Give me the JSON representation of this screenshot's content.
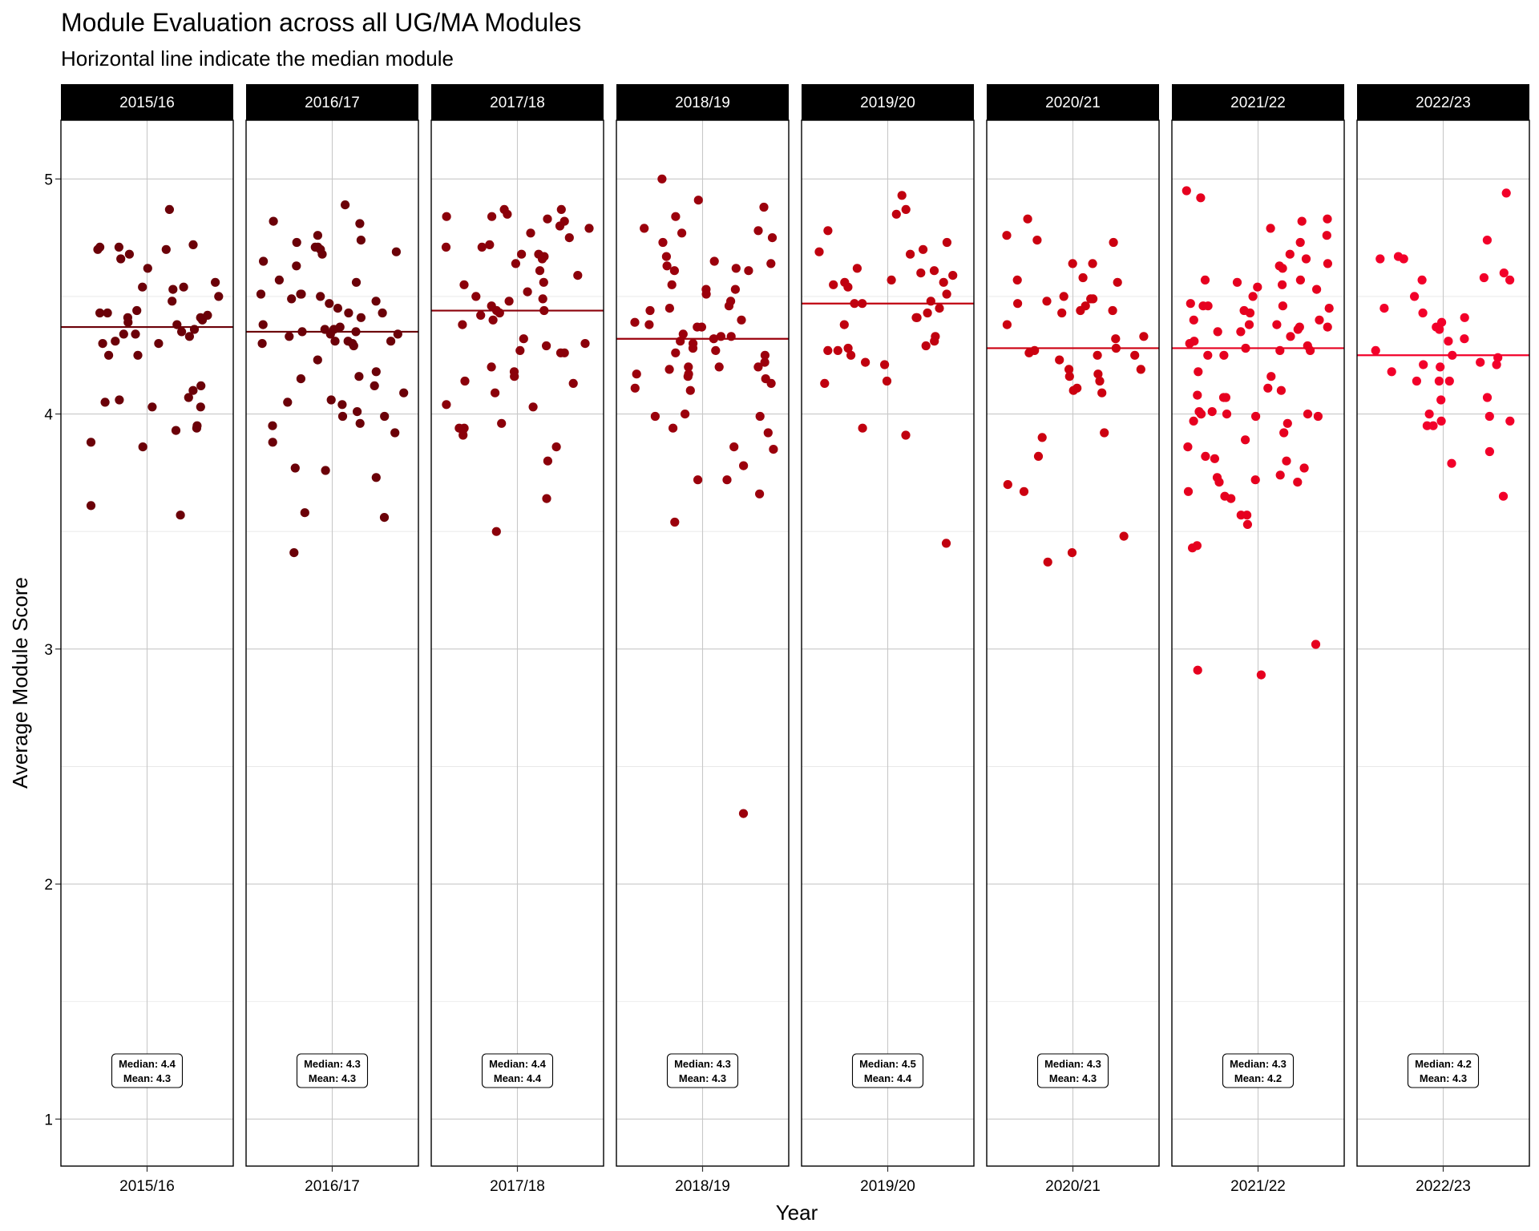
{
  "chart_data": {
    "type": "scatter",
    "title": "Module Evaluation across all UG/MA Modules",
    "subtitle": "Horizontal line indicate the median module",
    "xlabel": "Year",
    "ylabel": "Average Module Score",
    "ylim": [
      0.8,
      5.25
    ],
    "yticks": [
      "1",
      "2",
      "3",
      "4",
      "5"
    ],
    "grid": true,
    "panels": [
      {
        "year": "2015/16",
        "color": "#6b0008",
        "median": 4.37,
        "median_label": "Median: 4.4",
        "mean_label": "Mean: 4.3",
        "points": [
          4.87,
          4.71,
          4.7,
          4.5,
          4.53,
          4.48,
          4.43,
          4.4,
          4.38,
          4.36,
          4.35,
          4.34,
          4.33,
          4.3,
          4.3,
          4.25,
          4.05,
          4.07,
          4.03,
          3.94,
          3.88,
          3.86,
          3.57,
          4.41,
          4.31,
          4.39,
          4.42,
          4.41,
          4.34,
          4.44,
          4.72,
          4.71,
          4.7,
          4.66,
          4.68,
          4.62,
          4.56,
          4.54,
          4.54,
          4.43,
          4.25,
          4.12,
          4.1,
          4.06,
          4.03,
          3.95,
          3.93,
          3.61
        ]
      },
      {
        "year": "2016/17",
        "color": "#6b0008",
        "median": 4.35,
        "median_label": "Median: 4.3",
        "mean_label": "Mean: 4.3",
        "points": [
          4.89,
          4.82,
          4.81,
          4.76,
          4.74,
          4.73,
          4.71,
          4.71,
          4.7,
          4.69,
          4.68,
          4.65,
          4.63,
          4.57,
          4.56,
          4.51,
          4.51,
          4.51,
          4.5,
          4.49,
          4.48,
          4.47,
          4.45,
          4.43,
          4.43,
          4.41,
          4.38,
          4.37,
          4.36,
          4.36,
          4.35,
          4.35,
          4.34,
          4.34,
          4.33,
          4.31,
          4.31,
          4.31,
          4.3,
          4.3,
          4.29,
          4.23,
          4.18,
          4.16,
          4.15,
          4.12,
          4.09,
          4.06,
          4.05,
          4.04,
          4.01,
          3.99,
          3.99,
          3.96,
          3.95,
          3.92,
          3.88,
          3.77,
          3.76,
          3.73,
          3.58,
          3.56,
          3.41
        ]
      },
      {
        "year": "2017/18",
        "color": "#8b000a",
        "median": 4.44,
        "median_label": "Median: 4.4",
        "mean_label": "Mean: 4.4",
        "points": [
          4.87,
          4.87,
          4.85,
          4.84,
          4.84,
          4.83,
          4.82,
          4.8,
          4.79,
          4.77,
          4.75,
          4.72,
          4.71,
          4.71,
          4.68,
          4.68,
          4.67,
          4.66,
          4.64,
          4.61,
          4.59,
          4.56,
          4.55,
          4.52,
          4.5,
          4.49,
          4.48,
          4.46,
          4.44,
          4.44,
          4.43,
          4.42,
          4.4,
          4.38,
          4.32,
          4.3,
          4.29,
          4.27,
          4.26,
          4.26,
          4.2,
          4.18,
          4.16,
          4.14,
          4.13,
          4.09,
          4.04,
          4.03,
          3.96,
          3.94,
          3.94,
          3.93,
          3.91,
          3.86,
          3.8,
          3.64,
          3.5
        ]
      },
      {
        "year": "2018/19",
        "color": "#9b000c",
        "median": 4.32,
        "median_label": "Median: 4.3",
        "mean_label": "Mean: 4.3",
        "points": [
          5.0,
          4.91,
          4.88,
          4.84,
          4.79,
          4.78,
          4.77,
          4.75,
          4.73,
          4.67,
          4.65,
          4.64,
          4.63,
          4.62,
          4.61,
          4.61,
          4.55,
          4.53,
          4.53,
          4.51,
          4.48,
          4.46,
          4.45,
          4.44,
          4.4,
          4.39,
          4.38,
          4.37,
          4.37,
          4.34,
          4.33,
          4.33,
          4.32,
          4.31,
          4.3,
          4.28,
          4.27,
          4.26,
          4.25,
          4.22,
          4.2,
          4.2,
          4.2,
          4.19,
          4.17,
          4.17,
          4.16,
          4.15,
          4.13,
          4.11,
          4.1,
          4.0,
          3.99,
          3.99,
          3.94,
          3.92,
          3.86,
          3.85,
          3.78,
          3.72,
          3.72,
          3.66,
          3.54,
          2.3
        ]
      },
      {
        "year": "2019/20",
        "color": "#c0000f",
        "median": 4.47,
        "median_label": "Median: 4.5",
        "mean_label": "Mean: 4.4",
        "points": [
          4.93,
          4.87,
          4.85,
          4.78,
          4.73,
          4.7,
          4.69,
          4.68,
          4.62,
          4.61,
          4.6,
          4.59,
          4.57,
          4.56,
          4.56,
          4.55,
          4.54,
          4.51,
          4.48,
          4.47,
          4.47,
          4.45,
          4.43,
          4.41,
          4.41,
          4.38,
          4.33,
          4.31,
          4.29,
          4.28,
          4.27,
          4.27,
          4.25,
          4.22,
          4.21,
          4.14,
          4.13,
          3.94,
          3.91,
          3.45
        ]
      },
      {
        "year": "2020/21",
        "color": "#cc0010",
        "median": 4.28,
        "median_label": "Median: 4.3",
        "mean_label": "Mean: 4.3",
        "points": [
          4.83,
          4.76,
          4.74,
          4.73,
          4.64,
          4.64,
          4.58,
          4.57,
          4.56,
          4.5,
          4.49,
          4.49,
          4.48,
          4.47,
          4.46,
          4.44,
          4.44,
          4.43,
          4.38,
          4.33,
          4.32,
          4.28,
          4.27,
          4.26,
          4.25,
          4.25,
          4.23,
          4.19,
          4.19,
          4.17,
          4.16,
          4.14,
          4.11,
          4.1,
          4.09,
          3.92,
          3.9,
          3.82,
          3.7,
          3.67,
          3.48,
          3.41,
          3.37
        ]
      },
      {
        "year": "2021/22",
        "color": "#e6001f",
        "median": 4.28,
        "median_label": "Median: 4.3",
        "mean_label": "Mean: 4.2",
        "points": [
          4.95,
          4.92,
          4.83,
          4.82,
          4.79,
          4.76,
          4.73,
          4.68,
          4.66,
          4.64,
          4.63,
          4.62,
          4.57,
          4.57,
          4.56,
          4.55,
          4.54,
          4.53,
          4.5,
          4.47,
          4.46,
          4.46,
          4.46,
          4.45,
          4.44,
          4.43,
          4.4,
          4.4,
          4.38,
          4.38,
          4.37,
          4.37,
          4.36,
          4.35,
          4.35,
          4.33,
          4.31,
          4.3,
          4.29,
          4.28,
          4.27,
          4.27,
          4.25,
          4.25,
          4.18,
          4.16,
          4.11,
          4.1,
          4.08,
          4.07,
          4.07,
          4.01,
          4.01,
          4.0,
          4.0,
          4.0,
          4.0,
          3.99,
          3.99,
          3.97,
          3.96,
          3.92,
          3.89,
          3.86,
          3.82,
          3.81,
          3.8,
          3.77,
          3.74,
          3.73,
          3.72,
          3.71,
          3.71,
          3.67,
          3.65,
          3.64,
          3.57,
          3.57,
          3.53,
          3.44,
          3.43,
          3.02,
          2.91,
          2.89
        ]
      },
      {
        "year": "2022/23",
        "color": "#f2002a",
        "median": 4.25,
        "median_label": "Median: 4.2",
        "mean_label": "Mean: 4.3",
        "points": [
          4.94,
          4.74,
          4.67,
          4.66,
          4.66,
          4.6,
          4.58,
          4.57,
          4.57,
          4.5,
          4.45,
          4.43,
          4.41,
          4.39,
          4.37,
          4.36,
          4.32,
          4.31,
          4.27,
          4.25,
          4.24,
          4.22,
          4.21,
          4.21,
          4.2,
          4.18,
          4.14,
          4.14,
          4.14,
          4.07,
          4.06,
          4.0,
          3.99,
          3.97,
          3.97,
          3.95,
          3.95,
          3.84,
          3.79,
          3.65
        ]
      }
    ]
  }
}
